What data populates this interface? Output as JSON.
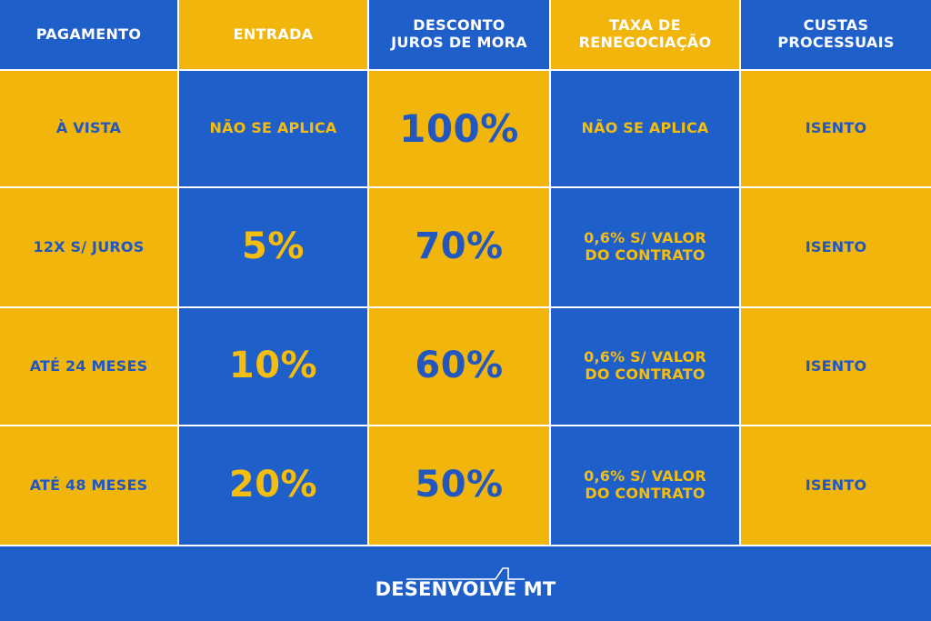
{
  "header": {
    "col1": "PAGAMENTO",
    "col2": "ENTRADA",
    "col3": "DESCONTO\nJUROS DE MORA",
    "col4": "TAXA DE\nRENEGOCIAÇÃO",
    "col5": "CUSTAS\nPROCESSUAIS"
  },
  "rows": [
    {
      "pagamento": "À VISTA",
      "entrada": "NÃO SE APLICA",
      "desconto": "100%",
      "taxa": "NÃO SE APLICA",
      "custas": "ISENTO"
    },
    {
      "pagamento": "12X S/ JUROS",
      "entrada": "5%",
      "desconto": "70%",
      "taxa": "0,6% S/ VALOR\nDO CONTRATO",
      "custas": "ISENTO"
    },
    {
      "pagamento": "ATÉ 24 MESES",
      "entrada": "10%",
      "desconto": "60%",
      "taxa": "0,6% S/ VALOR\nDO CONTRATO",
      "custas": "ISENTO"
    },
    {
      "pagamento": "ATÉ 48 MESES",
      "entrada": "20%",
      "desconto": "50%",
      "taxa": "0,6% S/ VALOR\nDO CONTRATO",
      "custas": "ISENTO"
    }
  ],
  "footer": {
    "logo_text": "DESENVOLVE MT"
  },
  "colors": {
    "blue": "#1f5fc9",
    "yellow": "#f1b50c",
    "white": "#ffffff"
  },
  "icons": {
    "logo_mark": "mountain-line-logo-icon"
  }
}
